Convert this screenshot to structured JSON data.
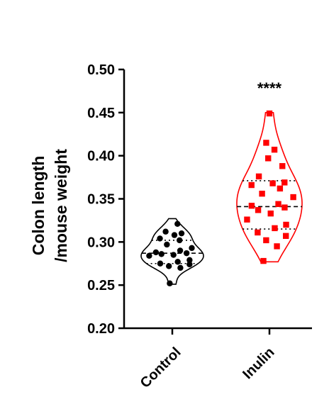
{
  "chart_data": {
    "type": "violin",
    "ylabel_line1": "Colon length",
    "ylabel_line2": "/mouse weight",
    "ylim": [
      0.2,
      0.5
    ],
    "yticks": [
      "0.20",
      "0.25",
      "0.30",
      "0.35",
      "0.40",
      "0.45",
      "0.50"
    ],
    "categories": [
      "Control",
      "Inulin"
    ],
    "significance": "****",
    "series": [
      {
        "name": "Control",
        "color": "#000000",
        "marker": "circle",
        "median": 0.287,
        "q1": 0.275,
        "q3": 0.302,
        "min": 0.251,
        "max": 0.327,
        "values": [
          0.252,
          0.27,
          0.272,
          0.274,
          0.275,
          0.277,
          0.279,
          0.284,
          0.285,
          0.286,
          0.287,
          0.288,
          0.29,
          0.293,
          0.297,
          0.302,
          0.304,
          0.308,
          0.31,
          0.312,
          0.321
        ]
      },
      {
        "name": "Inulin",
        "color": "#ff0000",
        "marker": "square",
        "median": 0.341,
        "q1": 0.315,
        "q3": 0.371,
        "min": 0.277,
        "max": 0.45,
        "values": [
          0.278,
          0.295,
          0.302,
          0.307,
          0.311,
          0.316,
          0.32,
          0.326,
          0.333,
          0.337,
          0.34,
          0.342,
          0.344,
          0.352,
          0.356,
          0.362,
          0.366,
          0.368,
          0.369,
          0.376,
          0.388,
          0.397,
          0.407,
          0.415,
          0.449
        ]
      }
    ]
  }
}
